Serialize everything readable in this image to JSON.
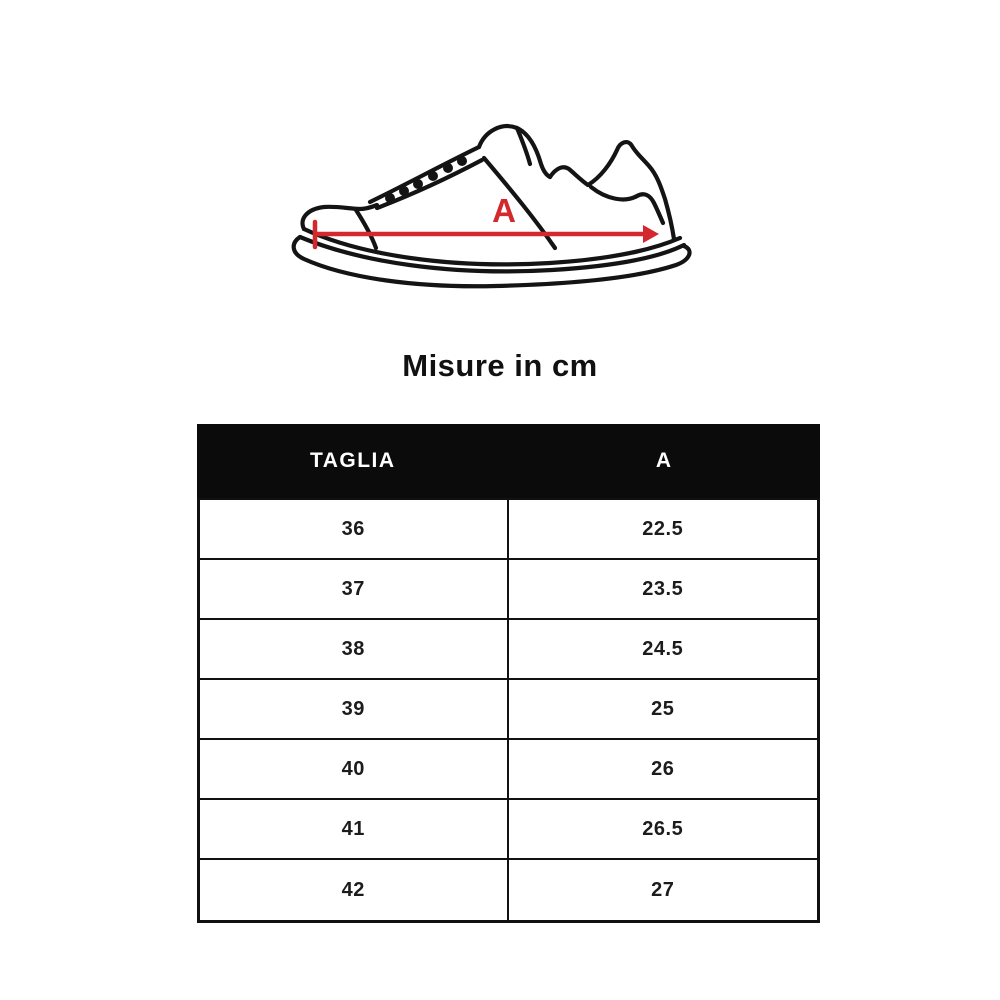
{
  "title": "Misure in cm",
  "figure": {
    "name": "sneaker-side-view",
    "measurement_label": "A",
    "accent_color": "#d2282e",
    "outline_color": "#141414"
  },
  "table": {
    "headers": [
      "TAGLIA",
      "A"
    ],
    "rows": [
      [
        "36",
        "22.5"
      ],
      [
        "37",
        "23.5"
      ],
      [
        "38",
        "24.5"
      ],
      [
        "39",
        "25"
      ],
      [
        "40",
        "26"
      ],
      [
        "41",
        "26.5"
      ],
      [
        "42",
        "27"
      ]
    ],
    "header_bg": "#0b0b0b",
    "header_text_color": "#ffffff"
  },
  "chart_data": {
    "type": "table",
    "title": "Misure in cm",
    "columns": [
      "TAGLIA",
      "A"
    ],
    "rows": [
      [
        36,
        22.5
      ],
      [
        37,
        23.5
      ],
      [
        38,
        24.5
      ],
      [
        39,
        25
      ],
      [
        40,
        26
      ],
      [
        41,
        26.5
      ],
      [
        42,
        27
      ]
    ],
    "units": "cm"
  }
}
